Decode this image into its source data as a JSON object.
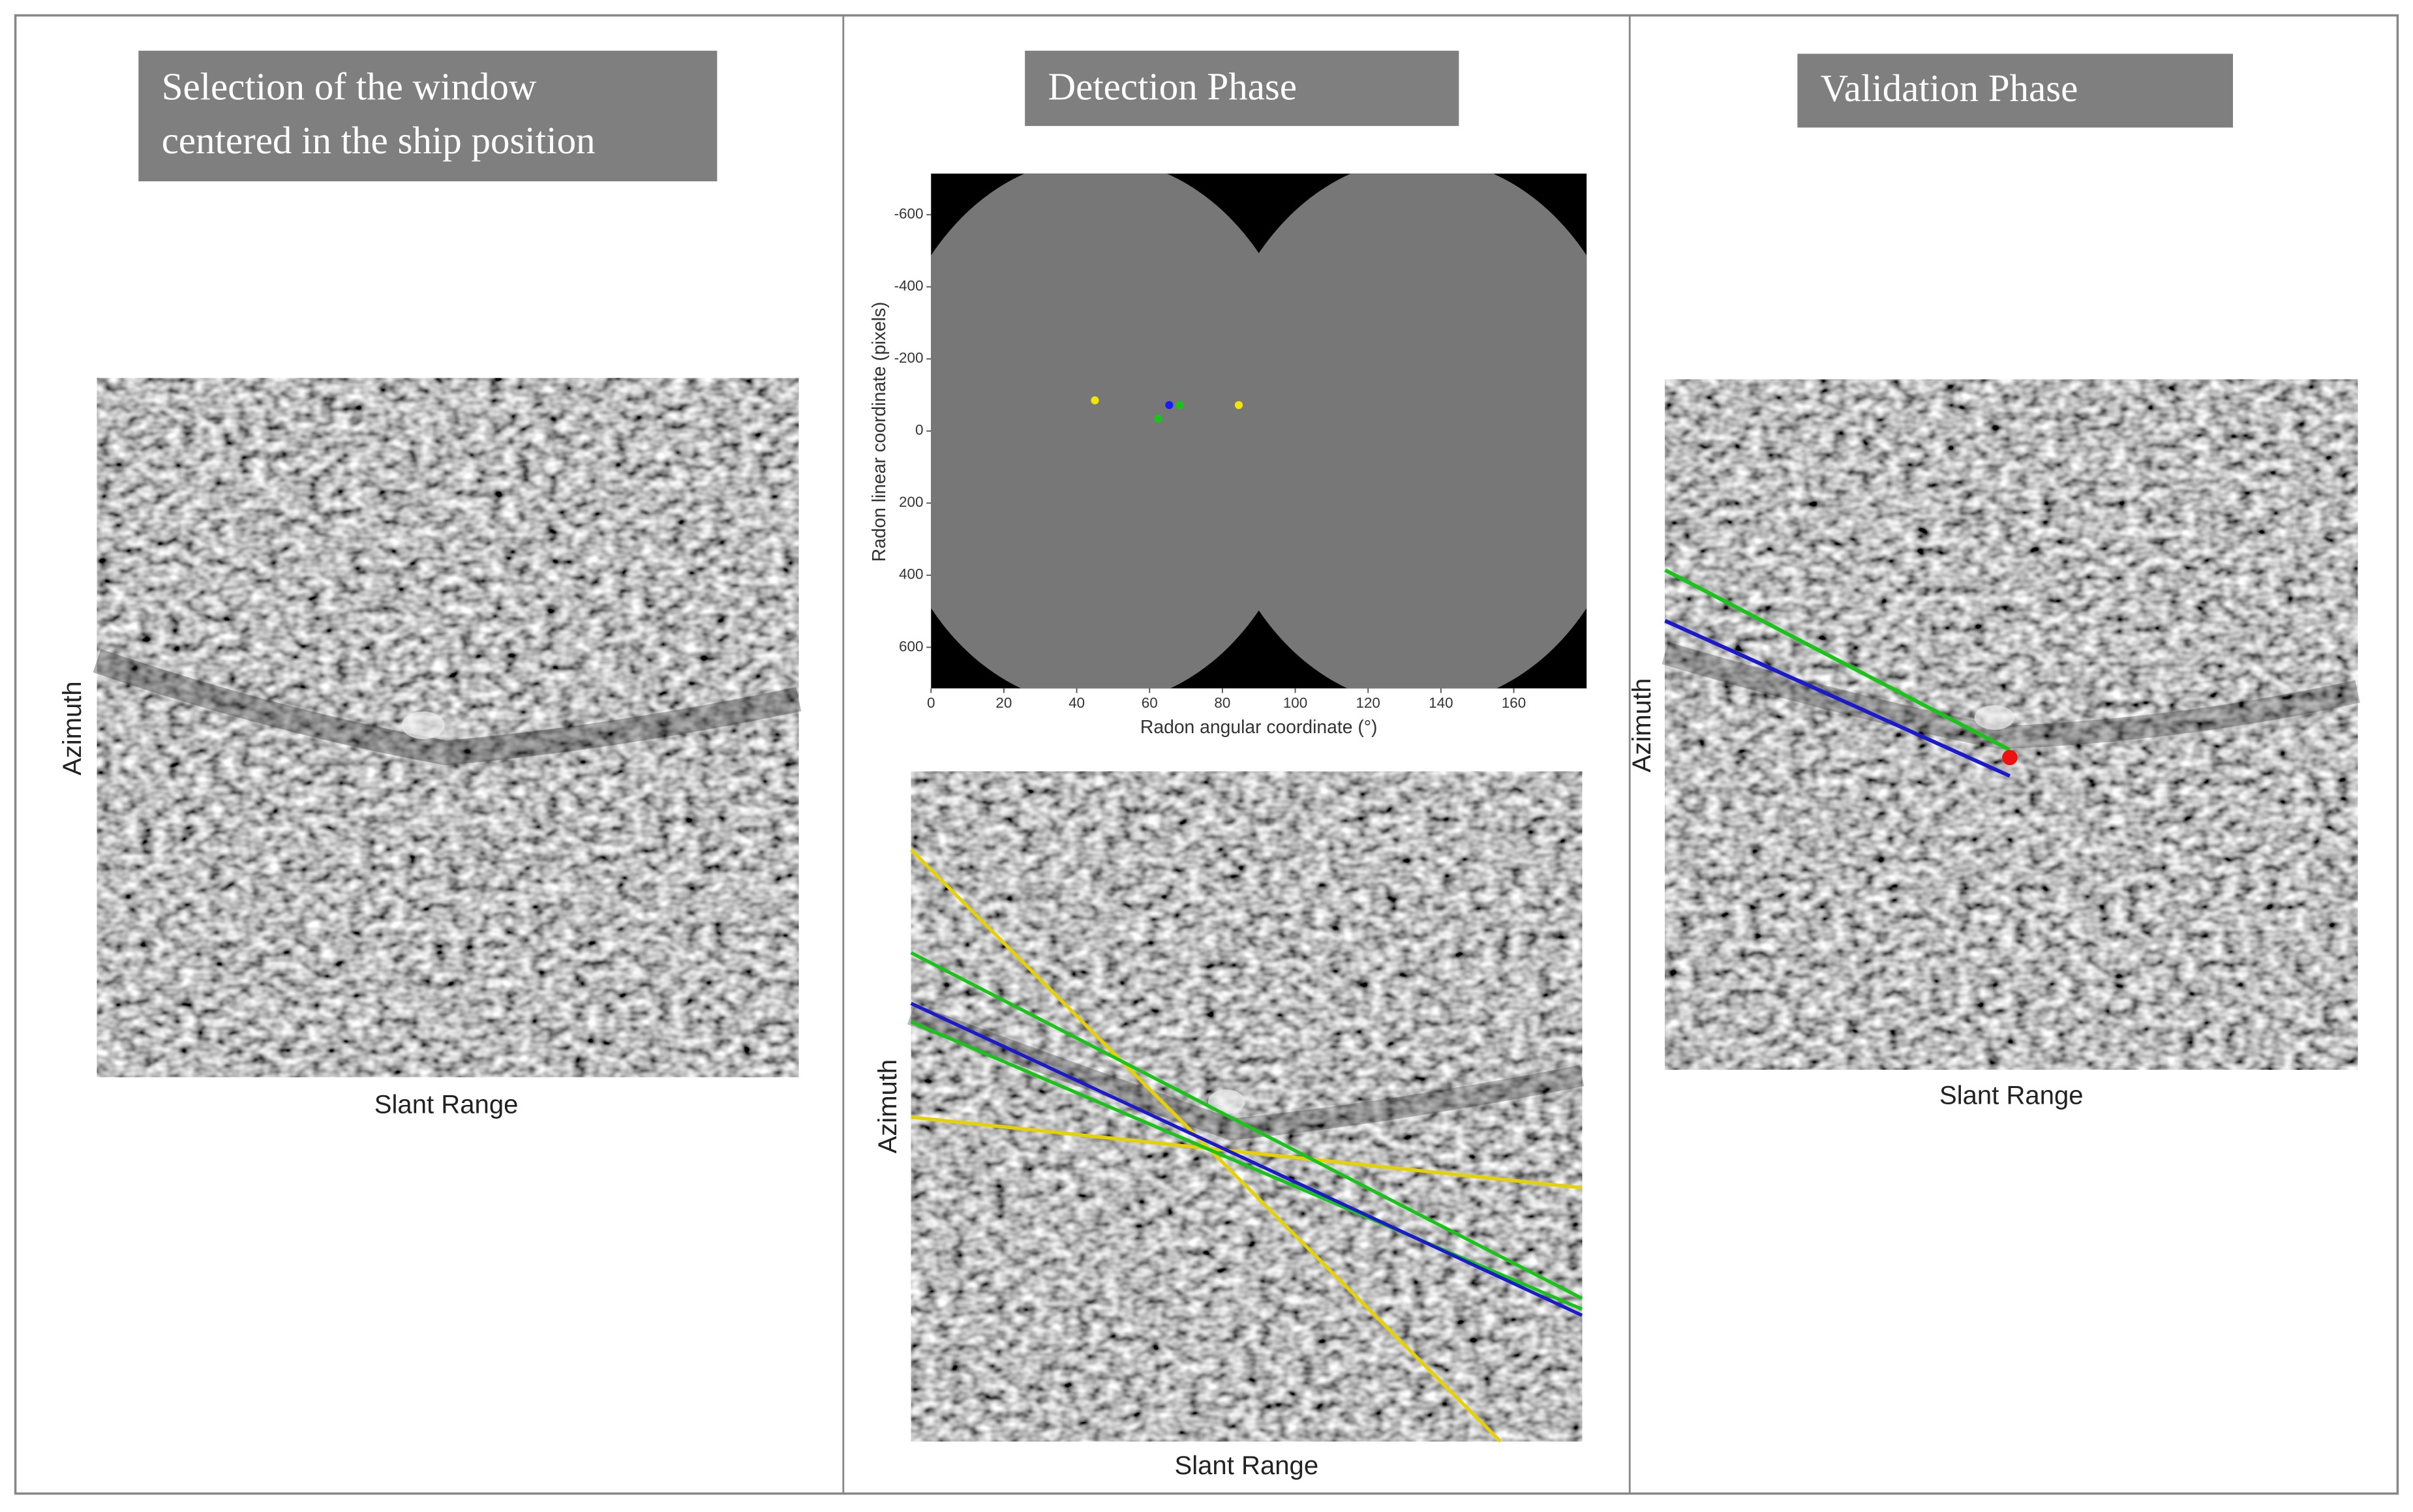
{
  "panels": [
    {
      "title_lines": [
        "Selection of the window",
        "centered in the ship position"
      ],
      "y_label": "Azimuth",
      "x_label": "Slant Range"
    },
    {
      "title_lines": [
        "Detection Phase"
      ],
      "y_label": "Azimuth",
      "x_label": "Slant Range"
    },
    {
      "title_lines": [
        "Validation Phase"
      ],
      "y_label": "Azimuth",
      "x_label": "Slant Range"
    }
  ],
  "radon_plot": {
    "type": "scatter",
    "x_label": "Radon angular coordinate (°)",
    "y_label": "Radon linear coordinate (pixels)",
    "xlim": [
      0,
      180
    ],
    "ylim": [
      -714,
      714
    ],
    "xticks": [
      0,
      20,
      40,
      60,
      80,
      100,
      120,
      140,
      160
    ],
    "yticks": [
      -600,
      -400,
      -200,
      0,
      200,
      400,
      600
    ],
    "y_inverted": true,
    "points": {
      "x": [
        45,
        84.5,
        62.4,
        68.3,
        65.4
      ],
      "y": [
        -85,
        -72,
        -34,
        -72,
        -72
      ],
      "colors": [
        "#f2e600",
        "#f2e600",
        "#19c419",
        "#19c419",
        "#1a1aff"
      ]
    }
  }
}
